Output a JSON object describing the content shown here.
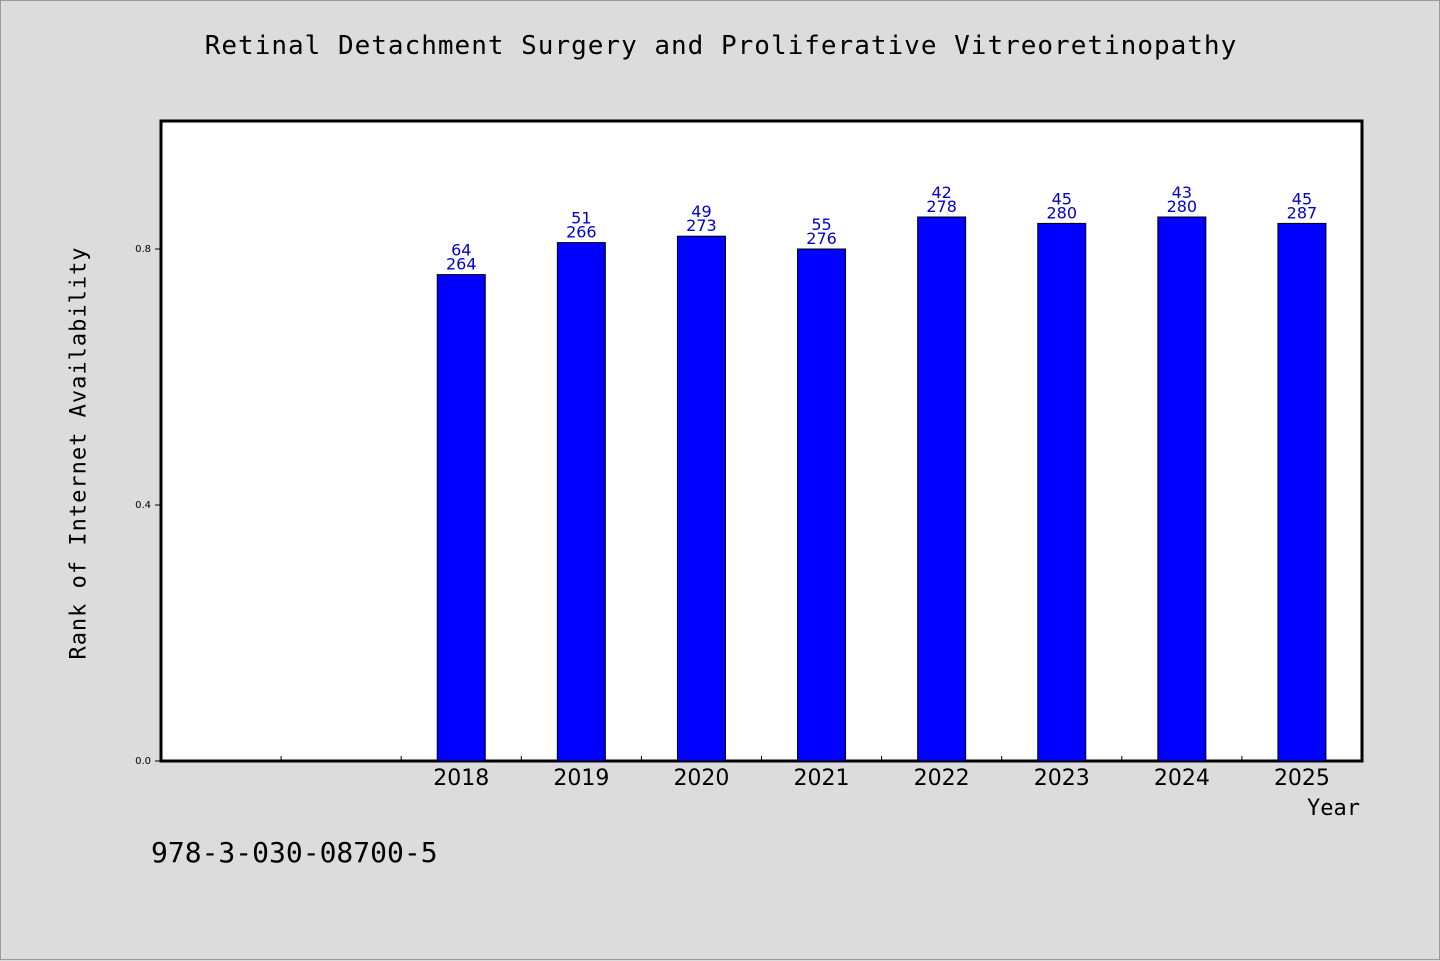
{
  "chart_data": {
    "type": "bar",
    "title": "Retinal Detachment Surgery and Proliferative Vitreoretinopathy",
    "xlabel": "Year",
    "ylabel": "Rank of Internet Availability",
    "categories": [
      "2018",
      "2019",
      "2020",
      "2021",
      "2022",
      "2023",
      "2024",
      "2025"
    ],
    "values": [
      0.76,
      0.81,
      0.82,
      0.8,
      0.85,
      0.84,
      0.85,
      0.84
    ],
    "labels_top": [
      "64",
      "51",
      "49",
      "55",
      "42",
      "45",
      "43",
      "45"
    ],
    "labels_bottom": [
      "264",
      "266",
      "273",
      "276",
      "278",
      "280",
      "280",
      "287"
    ],
    "ylim": [
      0,
      1.0
    ],
    "yticks": [
      {
        "value": 0.0,
        "label": "0.0"
      },
      {
        "value": 0.4,
        "label": "0.4"
      },
      {
        "value": 0.8,
        "label": "0.8"
      }
    ],
    "empty_leading_slots": 2,
    "bar_color": "#0000ff",
    "label_color": "#0000cc",
    "grid": false,
    "legend": "none"
  },
  "footer": {
    "isbn": "978-3-030-08700-5"
  }
}
